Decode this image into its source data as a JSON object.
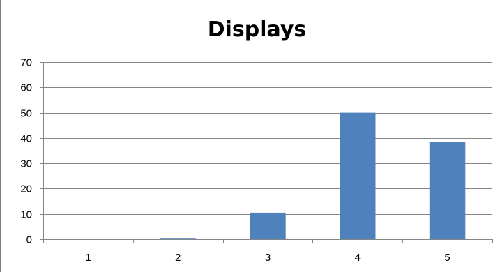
{
  "chart_data": {
    "type": "bar",
    "title": "Displays",
    "categories": [
      "1",
      "2",
      "3",
      "4",
      "5"
    ],
    "values": [
      0,
      0.5,
      10.5,
      50,
      38.5
    ],
    "ylim": [
      0,
      70
    ],
    "yticks": [
      0,
      10,
      20,
      30,
      40,
      50,
      60,
      70
    ],
    "grid": true,
    "legend": "none",
    "colors": {
      "bar": "#4f81bd",
      "gridline": "#868686",
      "axis": "#868686"
    }
  }
}
